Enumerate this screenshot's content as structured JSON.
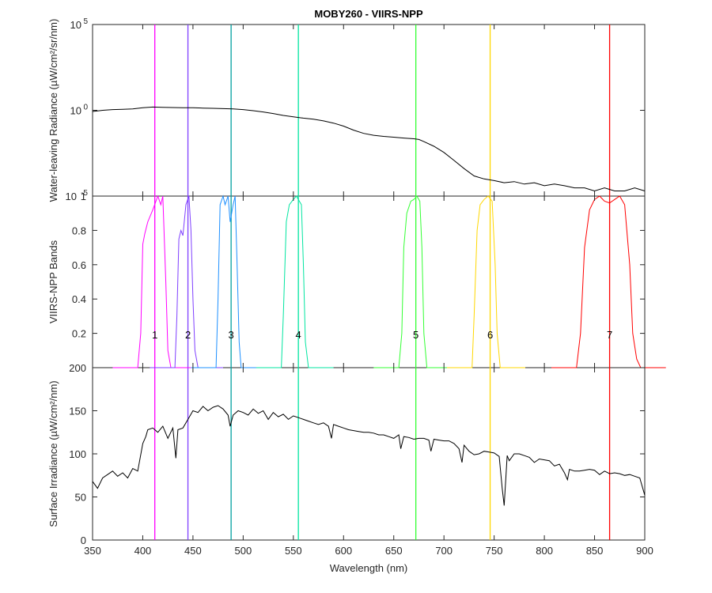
{
  "chart_data": [
    {
      "type": "line",
      "panel": "top",
      "title": "MOBY260 - VIIRS-NPP",
      "ylabel": "Water-leaving Radiance (µW/cm²/sr/nm)",
      "xlim": [
        350,
        900
      ],
      "ylim": [
        1e-05,
        100000
      ],
      "yscale": "log",
      "yticks": [
        {
          "value": 1e-05,
          "base": "10",
          "exp": "-5"
        },
        {
          "value": 1,
          "base": "10",
          "exp": "0"
        },
        {
          "value": 100000,
          "base": "10",
          "exp": "5"
        }
      ],
      "series": [
        {
          "color": "#000000",
          "x": [
            350,
            360,
            370,
            380,
            390,
            400,
            410,
            420,
            430,
            440,
            450,
            460,
            470,
            480,
            490,
            500,
            510,
            520,
            530,
            540,
            550,
            560,
            570,
            580,
            590,
            600,
            610,
            620,
            630,
            640,
            650,
            660,
            670,
            675,
            680,
            690,
            700,
            710,
            720,
            730,
            740,
            750,
            760,
            770,
            780,
            790,
            800,
            810,
            820,
            830,
            840,
            850,
            860,
            870,
            880,
            890,
            900
          ],
          "y": [
            0.85,
            1.0,
            1.1,
            1.15,
            1.2,
            1.4,
            1.55,
            1.5,
            1.45,
            1.4,
            1.4,
            1.35,
            1.3,
            1.25,
            1.2,
            1.1,
            0.95,
            0.8,
            0.65,
            0.5,
            0.42,
            0.35,
            0.3,
            0.24,
            0.18,
            0.12,
            0.07,
            0.045,
            0.035,
            0.03,
            0.027,
            0.024,
            0.022,
            0.02,
            0.015,
            0.008,
            0.0035,
            0.0012,
            0.0004,
            0.00015,
            0.0001,
            8e-05,
            6e-05,
            7e-05,
            5e-05,
            6e-05,
            4e-05,
            5e-05,
            4e-05,
            3e-05,
            3e-05,
            2e-05,
            3e-05,
            2e-05,
            2e-05,
            3e-05,
            2e-05
          ]
        }
      ],
      "vlines": [
        412,
        445,
        488,
        555,
        672,
        746,
        865
      ]
    },
    {
      "type": "line",
      "panel": "middle",
      "ylabel": "VIIRS-NPP Bands",
      "xlim": [
        350,
        900
      ],
      "ylim": [
        0,
        1
      ],
      "yticks": [
        "0.2",
        "0.4",
        "0.6",
        "0.8",
        "1"
      ],
      "series": [
        {
          "name": "1",
          "color": "#ff00ff",
          "center": 412,
          "x": [
            395,
            398,
            400,
            402,
            405,
            410,
            415,
            418,
            420,
            423,
            425,
            428
          ],
          "y": [
            0,
            0.2,
            0.72,
            0.78,
            0.85,
            0.92,
            1.0,
            0.95,
            1.0,
            0.5,
            0.1,
            0
          ]
        },
        {
          "name": "2",
          "color": "#7f3fff",
          "center": 445,
          "x": [
            432,
            434,
            436,
            438,
            440,
            443,
            446,
            448,
            450,
            452,
            455
          ],
          "y": [
            0,
            0.3,
            0.75,
            0.8,
            0.77,
            0.95,
            1.0,
            0.8,
            0.4,
            0.1,
            0
          ]
        },
        {
          "name": "3",
          "color": "#1e90ff",
          "center": 488,
          "x": [
            473,
            475,
            477,
            480,
            482,
            485,
            487,
            490,
            492,
            494,
            496,
            498
          ],
          "y": [
            0,
            0.4,
            0.95,
            1.0,
            0.95,
            1.0,
            0.85,
            0.95,
            1.0,
            0.6,
            0.15,
            0
          ]
        },
        {
          "name": "4",
          "color": "#00e5a0",
          "center": 555,
          "x": [
            538,
            540,
            543,
            546,
            550,
            553,
            556,
            558,
            560,
            562,
            565
          ],
          "y": [
            0,
            0.3,
            0.85,
            0.95,
            0.98,
            1.0,
            0.97,
            0.95,
            0.6,
            0.15,
            0
          ]
        },
        {
          "name": "5",
          "color": "#33ff33",
          "center": 672,
          "x": [
            655,
            658,
            660,
            663,
            667,
            670,
            673,
            676,
            678,
            680,
            683
          ],
          "y": [
            0,
            0.2,
            0.7,
            0.9,
            0.97,
            0.98,
            1.0,
            0.97,
            0.7,
            0.2,
            0
          ]
        },
        {
          "name": "6",
          "color": "#ffd700",
          "center": 746,
          "x": [
            728,
            730,
            733,
            736,
            740,
            744,
            748,
            751,
            753,
            756
          ],
          "y": [
            0,
            0.3,
            0.8,
            0.95,
            0.98,
            1.0,
            0.97,
            0.6,
            0.2,
            0
          ]
        },
        {
          "name": "7",
          "color": "#ff0000",
          "center": 865,
          "x": [
            832,
            836,
            840,
            845,
            850,
            855,
            860,
            865,
            870,
            875,
            880,
            885,
            888,
            892,
            896
          ],
          "y": [
            0,
            0.2,
            0.7,
            0.92,
            0.98,
            1.0,
            0.97,
            0.96,
            0.98,
            1.0,
            0.95,
            0.6,
            0.2,
            0.05,
            0
          ]
        }
      ],
      "vlines": [
        412,
        445,
        488,
        555,
        672,
        746,
        865
      ]
    },
    {
      "type": "line",
      "panel": "bottom",
      "ylabel": "Surface Irradiance (µW/cm²/nm)",
      "xlabel": "Wavelength (nm)",
      "xlim": [
        350,
        900
      ],
      "ylim": [
        0,
        200
      ],
      "xticks": [
        "350",
        "400",
        "450",
        "500",
        "550",
        "600",
        "650",
        "700",
        "750",
        "800",
        "850",
        "900"
      ],
      "yticks": [
        "0",
        "50",
        "100",
        "150",
        "200"
      ],
      "series": [
        {
          "color": "#000000",
          "x": [
            350,
            355,
            360,
            365,
            370,
            375,
            380,
            385,
            390,
            395,
            400,
            403,
            405,
            410,
            415,
            420,
            425,
            430,
            433,
            435,
            440,
            445,
            450,
            455,
            460,
            465,
            470,
            475,
            480,
            485,
            487,
            490,
            495,
            500,
            505,
            510,
            515,
            520,
            525,
            530,
            535,
            540,
            545,
            550,
            555,
            560,
            565,
            570,
            575,
            580,
            585,
            588,
            590,
            595,
            600,
            605,
            610,
            615,
            620,
            625,
            630,
            635,
            640,
            645,
            650,
            655,
            657,
            660,
            665,
            670,
            675,
            680,
            685,
            687,
            690,
            695,
            700,
            705,
            710,
            715,
            718,
            720,
            725,
            730,
            735,
            740,
            745,
            750,
            755,
            758,
            760,
            763,
            765,
            770,
            775,
            780,
            785,
            790,
            795,
            800,
            805,
            810,
            815,
            820,
            823,
            825,
            830,
            835,
            840,
            845,
            850,
            855,
            860,
            865,
            870,
            875,
            880,
            885,
            890,
            895,
            900
          ],
          "y": [
            68,
            60,
            72,
            76,
            80,
            74,
            78,
            72,
            83,
            80,
            112,
            120,
            128,
            130,
            125,
            132,
            118,
            130,
            95,
            128,
            130,
            140,
            150,
            148,
            155,
            150,
            154,
            156,
            152,
            145,
            132,
            145,
            150,
            148,
            145,
            152,
            147,
            150,
            140,
            148,
            143,
            146,
            140,
            144,
            142,
            140,
            138,
            136,
            134,
            136,
            132,
            118,
            134,
            132,
            130,
            128,
            127,
            126,
            125,
            125,
            124,
            122,
            122,
            120,
            118,
            122,
            106,
            120,
            119,
            117,
            118,
            118,
            116,
            103,
            117,
            116,
            115,
            115,
            112,
            106,
            90,
            110,
            103,
            99,
            100,
            103,
            102,
            101,
            97,
            60,
            40,
            98,
            92,
            100,
            100,
            98,
            96,
            90,
            94,
            93,
            92,
            86,
            88,
            78,
            70,
            82,
            80,
            80,
            81,
            82,
            81,
            76,
            80,
            77,
            78,
            77,
            75,
            76,
            74,
            72,
            52
          ]
        }
      ],
      "vlines": [
        412,
        445,
        488,
        555,
        672,
        746,
        865
      ]
    }
  ],
  "vline_colors": [
    "#ff00ff",
    "#7f3fff",
    "#00a0a0",
    "#00e5a0",
    "#33ff33",
    "#ffd700",
    "#ff0000"
  ]
}
